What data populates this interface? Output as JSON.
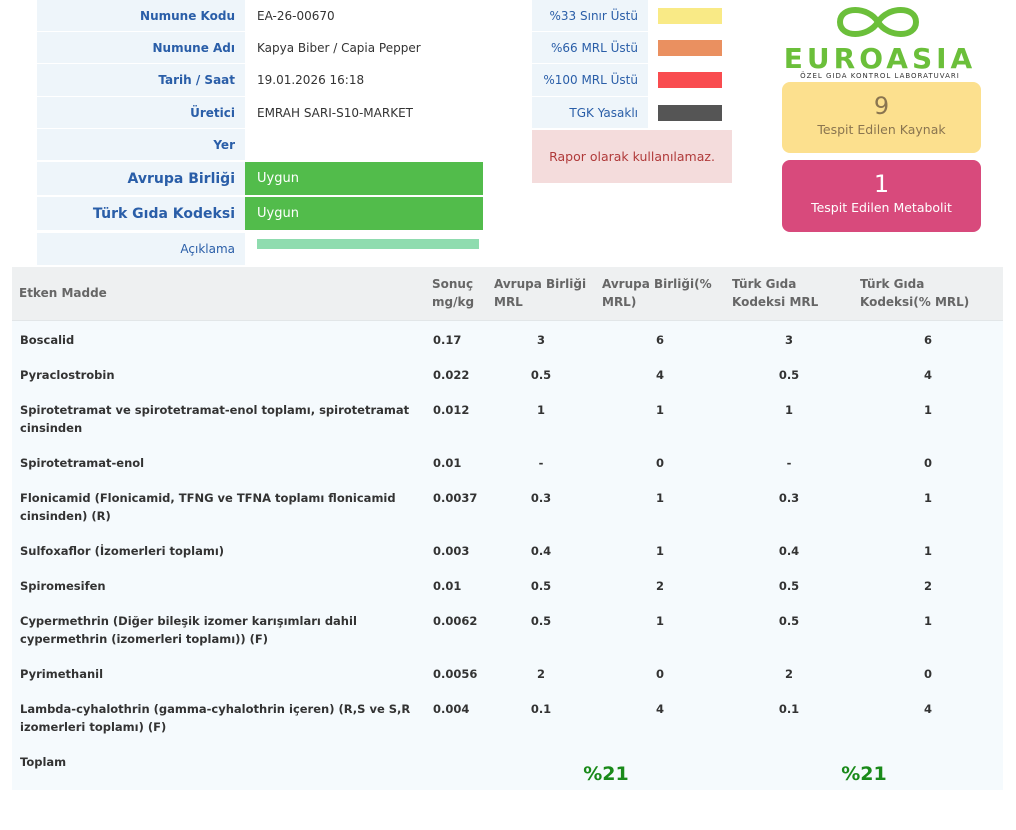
{
  "info": {
    "rows": [
      {
        "label": "Numune Kodu",
        "value": "EA-26-00670"
      },
      {
        "label": "Numune Adı",
        "value": "Kapya Biber / Capia Pepper"
      },
      {
        "label": "Tarih / Saat",
        "value": "19.01.2026 16:18"
      },
      {
        "label": "Üretici",
        "value": "EMRAH SARI-S10-MARKET"
      },
      {
        "label": "Yer"
      }
    ],
    "status": [
      {
        "label": "Avrupa Birliği",
        "value": "Uygun"
      },
      {
        "label": "Türk Gıda Kodeksi",
        "value": "Uygun"
      }
    ],
    "note_label": "Açıklama"
  },
  "legend": [
    {
      "label": "%33 Sınır Üstü",
      "color": "#f9ea86"
    },
    {
      "label": "%66 MRL Üstü",
      "color": "#ea9060"
    },
    {
      "label": "%100 MRL Üstü",
      "color": "#f94c4f"
    },
    {
      "label": "TGK Yasaklı",
      "color": "#555555"
    }
  ],
  "warning": "Rapor olarak kullanılamaz.",
  "logo": {
    "name": "EUROASIA",
    "subtitle": "ÖZEL GIDA KONTROL LABORATUVARI"
  },
  "cards": [
    {
      "value": 9,
      "label": "Tespit Edilen Kaynak"
    },
    {
      "value": 1,
      "label": "Tespit Edilen Metabolit"
    }
  ],
  "table": {
    "header": [
      "Etken Madde",
      "Sonuç mg/kg",
      "Avrupa Birliği MRL",
      "Avrupa Birliği(% MRL)",
      "Türk Gıda Kodeksi MRL",
      "Türk Gıda Kodeksi(% MRL)"
    ],
    "rows": [
      [
        "Boscalid",
        0.17,
        3,
        6,
        3,
        6
      ],
      [
        "Pyraclostrobin",
        0.022,
        0.5,
        4,
        0.5,
        4
      ],
      [
        "Spirotetramat ve spirotetramat-enol toplamı, spirotetramat cinsinden",
        0.012,
        1,
        1,
        1,
        1
      ],
      [
        "Spirotetramat-enol",
        0.01,
        "-",
        0,
        "-",
        0
      ],
      [
        "Flonicamid (Flonicamid, TFNG ve TFNA toplamı flonicamid cinsinden) (R)",
        0.0037,
        0.3,
        1,
        0.3,
        1
      ],
      [
        "Sulfoxaflor (İzomerleri toplamı)",
        0.003,
        0.4,
        1,
        0.4,
        1
      ],
      [
        "Spiromesifen",
        0.01,
        0.5,
        2,
        0.5,
        2
      ],
      [
        "Cypermethrin (Diğer bileşik izomer karışımları dahil cypermethrin (izomerleri toplamı)) (F)",
        0.0062,
        0.5,
        1,
        0.5,
        1
      ],
      [
        "Pyrimethanil",
        0.0056,
        2,
        0,
        2,
        0
      ],
      [
        "Lambda-cyhalothrin (gamma-cyhalothrin içeren) (R,S ve S,R izomerleri toplamı) (F)",
        0.004,
        0.1,
        4,
        0.1,
        4
      ]
    ],
    "total": {
      "label": "Toplam",
      "eu": "%21",
      "tgk": "%21"
    }
  }
}
